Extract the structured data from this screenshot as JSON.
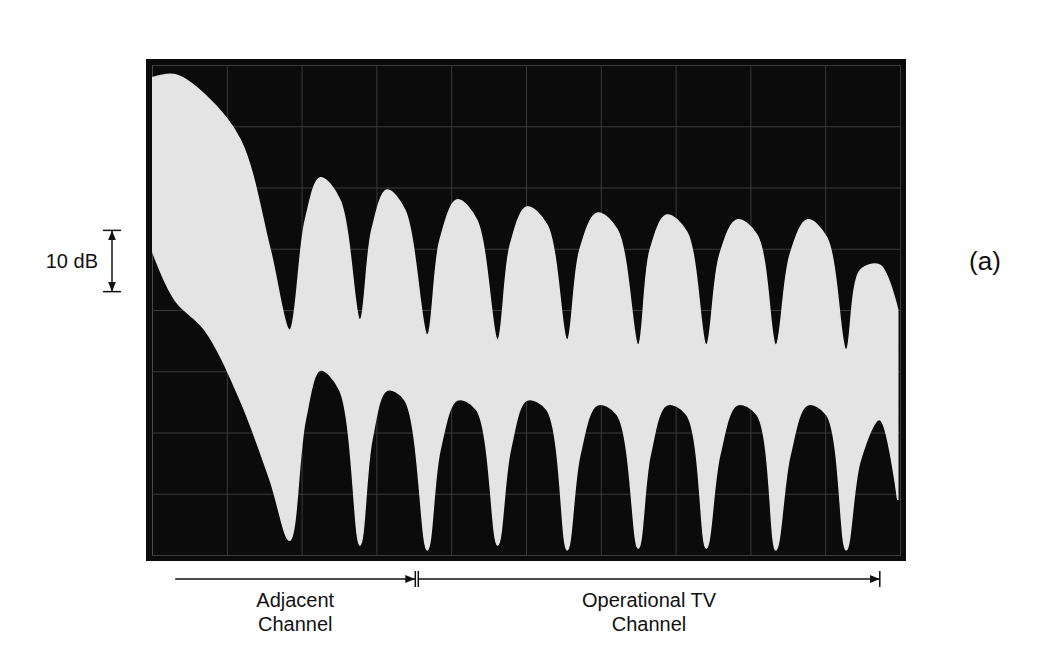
{
  "chart_data": {
    "type": "area",
    "x": [
      0,
      0.31,
      0.71,
      1.18,
      1.58,
      1.84,
      2.05,
      2.25,
      2.51,
      2.78,
      2.94,
      3.14,
      3.38,
      3.68,
      3.85,
      4.08,
      4.34,
      4.62,
      4.79,
      5.01,
      5.28,
      5.55,
      5.72,
      5.95,
      6.22,
      6.5,
      6.66,
      6.88,
      7.15,
      7.41,
      7.59,
      7.82,
      8.09,
      8.34,
      8.53,
      8.76,
      9.02,
      9.28,
      9.47,
      9.73,
      9.97
    ],
    "values": [
      -2.1,
      -1.6,
      -4.9,
      -12.2,
      -30.2,
      -43.3,
      -25.3,
      -18.4,
      -22.0,
      -41.6,
      -26.9,
      -20.4,
      -23.7,
      -44.1,
      -28.6,
      -22.0,
      -25.3,
      -44.9,
      -29.4,
      -23.2,
      -26.1,
      -44.9,
      -30.2,
      -24.2,
      -26.9,
      -45.7,
      -30.2,
      -24.5,
      -27.3,
      -45.7,
      -31.0,
      -25.3,
      -27.8,
      -45.7,
      -31.0,
      -25.3,
      -28.2,
      -46.5,
      -33.5,
      -32.7,
      -40.0
    ],
    "lower": [
      -30.2,
      -38.4,
      -43.3,
      -54.7,
      -67.8,
      -77.6,
      -57.9,
      -49.8,
      -53.1,
      -78.4,
      -61.2,
      -53.1,
      -54.7,
      -79.2,
      -62.9,
      -54.7,
      -56.3,
      -78.4,
      -62.9,
      -54.7,
      -56.3,
      -79.2,
      -63.7,
      -55.5,
      -57.1,
      -78.9,
      -63.7,
      -55.5,
      -57.1,
      -78.9,
      -63.7,
      -55.5,
      -57.1,
      -79.2,
      -63.7,
      -55.5,
      -57.1,
      -79.2,
      -64.5,
      -57.9,
      -71.0
    ],
    "xlim": [
      0,
      10
    ],
    "ylim": [
      -80,
      0
    ],
    "xticks": [
      0,
      1,
      2,
      3,
      4,
      5,
      6,
      7,
      8,
      9,
      10
    ],
    "yticks": [
      -80,
      -70,
      -60,
      -50,
      -40,
      -30,
      -20,
      -10,
      0
    ],
    "grid": true,
    "tick_labels": false,
    "color": "#e4e4e4",
    "scale_bar": {
      "label": "10 dB",
      "value": 10,
      "from": -27
    },
    "channels": [
      {
        "label": "Adjacent Channel",
        "x": [
          0.31,
          3.52
        ]
      },
      {
        "label": "Operational TV Channel",
        "x": [
          3.56,
          9.73
        ]
      }
    ],
    "panel_label": "(a)"
  }
}
